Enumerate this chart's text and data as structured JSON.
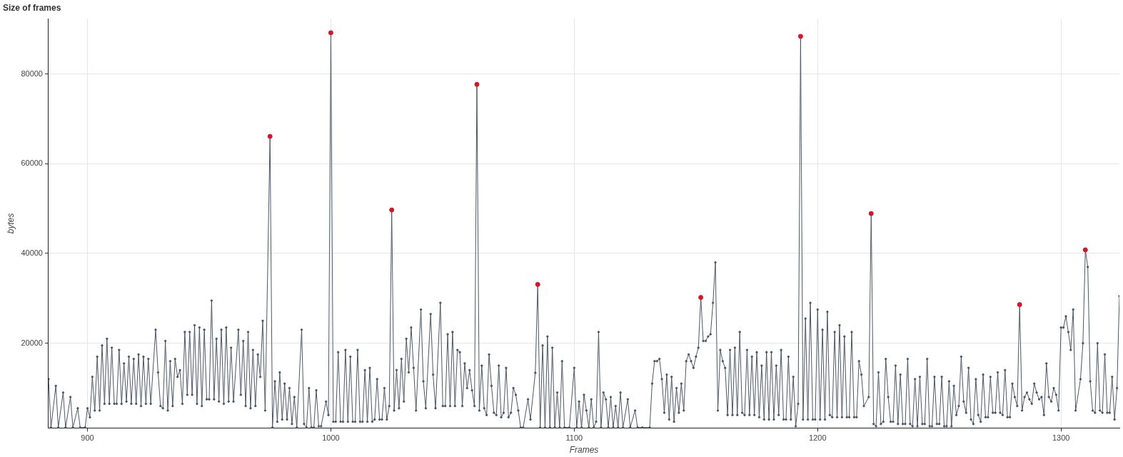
{
  "chart_data": {
    "type": "line",
    "title": "Size of frames",
    "xlabel": "Frames",
    "ylabel": "bytes",
    "grid": true,
    "xlim": [
      884,
      1324
    ],
    "ylim": [
      1100,
      92300
    ],
    "xticks": [
      900,
      1000,
      1100,
      1200,
      1300
    ],
    "yticks": [
      20000,
      40000,
      60000,
      80000
    ],
    "series": [
      {
        "color": "#4a5866",
        "marker": "circle",
        "x": [
          884,
          885,
          887,
          888,
          890,
          891,
          893,
          894,
          896,
          897,
          899,
          900,
          901,
          902,
          903,
          904,
          905,
          906,
          907,
          908,
          909,
          910,
          911,
          912,
          913,
          914,
          915,
          916,
          917,
          918,
          919,
          920,
          921,
          922,
          923,
          924,
          925,
          926,
          928,
          929,
          930,
          931,
          932,
          933,
          934,
          935,
          936,
          937,
          938,
          939,
          940,
          941,
          942,
          943,
          944,
          945,
          946,
          947,
          948,
          949,
          950,
          951,
          952,
          953,
          954,
          955,
          956,
          957,
          958,
          959,
          960,
          962,
          963,
          964,
          965,
          966,
          967,
          968,
          969,
          970,
          971,
          972,
          973,
          975,
          976,
          977,
          978,
          979,
          980,
          981,
          982,
          983,
          984,
          985,
          986,
          988,
          989,
          990,
          991,
          992,
          993,
          994,
          995,
          996,
          998,
          999,
          1000,
          1001,
          1002,
          1003,
          1004,
          1005,
          1006,
          1007,
          1008,
          1009,
          1010,
          1011,
          1012,
          1013,
          1014,
          1015,
          1016,
          1017,
          1018,
          1019,
          1020,
          1021,
          1022,
          1023,
          1024,
          1025,
          1026,
          1027,
          1028,
          1029,
          1030,
          1031,
          1032,
          1033,
          1034,
          1035,
          1037,
          1038,
          1039,
          1041,
          1042,
          1043,
          1045,
          1046,
          1047,
          1048,
          1049,
          1050,
          1051,
          1052,
          1053,
          1054,
          1055,
          1056,
          1057,
          1058,
          1059,
          1060,
          1061,
          1062,
          1063,
          1064,
          1065,
          1066,
          1067,
          1068,
          1069,
          1070,
          1071,
          1072,
          1073,
          1074,
          1075,
          1076,
          1077,
          1078,
          1079,
          1081,
          1082,
          1084,
          1085,
          1086,
          1087,
          1088,
          1089,
          1090,
          1091,
          1092,
          1093,
          1094,
          1095,
          1096,
          1098,
          1100,
          1101,
          1102,
          1103,
          1104,
          1105,
          1106,
          1107,
          1108,
          1109,
          1110,
          1111,
          1112,
          1113,
          1114,
          1115,
          1116,
          1117,
          1118,
          1119,
          1120,
          1122,
          1123,
          1125,
          1126,
          1128,
          1131,
          1132,
          1133,
          1134,
          1135,
          1136,
          1137,
          1138,
          1139,
          1140,
          1141,
          1142,
          1143,
          1144,
          1145,
          1146,
          1147,
          1148,
          1149,
          1150,
          1151,
          1152,
          1153,
          1154,
          1155,
          1156,
          1157,
          1158,
          1159,
          1160,
          1161,
          1162,
          1163,
          1164,
          1165,
          1166,
          1167,
          1168,
          1169,
          1170,
          1171,
          1172,
          1173,
          1174,
          1175,
          1176,
          1177,
          1178,
          1179,
          1180,
          1181,
          1182,
          1183,
          1184,
          1185,
          1186,
          1187,
          1188,
          1189,
          1190,
          1191,
          1192,
          1193,
          1194,
          1195,
          1196,
          1197,
          1198,
          1199,
          1200,
          1201,
          1202,
          1203,
          1204,
          1205,
          1206,
          1207,
          1208,
          1209,
          1210,
          1211,
          1212,
          1213,
          1214,
          1215,
          1216,
          1217,
          1218,
          1219,
          1221,
          1222,
          1223,
          1224,
          1225,
          1226,
          1227,
          1228,
          1229,
          1230,
          1231,
          1232,
          1233,
          1234,
          1235,
          1236,
          1237,
          1238,
          1239,
          1240,
          1241,
          1242,
          1243,
          1244,
          1245,
          1246,
          1247,
          1248,
          1249,
          1250,
          1251,
          1252,
          1253,
          1254,
          1255,
          1256,
          1257,
          1258,
          1259,
          1260,
          1261,
          1262,
          1263,
          1264,
          1265,
          1266,
          1267,
          1268,
          1269,
          1270,
          1271,
          1272,
          1273,
          1274,
          1275,
          1276,
          1277,
          1278,
          1279,
          1280,
          1281,
          1282,
          1283,
          1284,
          1285,
          1286,
          1287,
          1288,
          1289,
          1290,
          1291,
          1292,
          1293,
          1294,
          1295,
          1296,
          1297,
          1298,
          1299,
          1300,
          1301,
          1302,
          1303,
          1304,
          1305,
          1306,
          1308,
          1309,
          1310,
          1311,
          1312,
          1313,
          1314,
          1315,
          1316,
          1317,
          1318,
          1319,
          1320,
          1321,
          1322,
          1323,
          1324
        ],
        "values": [
          12000,
          1200,
          10500,
          1200,
          9000,
          1200,
          8000,
          1200,
          5500,
          1200,
          1200,
          5500,
          3500,
          12500,
          5000,
          17000,
          5000,
          19500,
          6500,
          21000,
          6500,
          19000,
          6500,
          6500,
          18500,
          6500,
          15500,
          7000,
          17000,
          6500,
          16500,
          6500,
          17500,
          6000,
          17000,
          6500,
          16500,
          6500,
          23000,
          13500,
          6000,
          5500,
          20500,
          5000,
          16000,
          6000,
          16500,
          12500,
          14000,
          6500,
          22500,
          8500,
          22500,
          8500,
          24000,
          6500,
          23500,
          6000,
          23000,
          7500,
          7500,
          29500,
          7500,
          21000,
          7000,
          23000,
          6500,
          23500,
          7000,
          19000,
          7000,
          23000,
          8500,
          20500,
          6000,
          22500,
          5500,
          18500,
          6000,
          17500,
          12500,
          25000,
          5000,
          66100,
          1200,
          11500,
          2500,
          13500,
          3000,
          11000,
          3000,
          10000,
          2000,
          8000,
          1200,
          23000,
          2000,
          1200,
          10000,
          1200,
          1200,
          9500,
          1500,
          1500,
          7000,
          4000,
          89200,
          2500,
          2500,
          18000,
          2500,
          2500,
          18500,
          2500,
          17000,
          2500,
          2500,
          18500,
          2500,
          2500,
          14000,
          2500,
          14500,
          2500,
          3000,
          12000,
          3000,
          3000,
          10000,
          3000,
          6000,
          49700,
          5000,
          14000,
          5500,
          16500,
          7000,
          21000,
          13500,
          23500,
          14500,
          5000,
          27500,
          11500,
          5500,
          26500,
          13000,
          5500,
          29000,
          6000,
          6000,
          22000,
          6000,
          22500,
          6000,
          18500,
          18000,
          6000,
          15500,
          10000,
          14000,
          9500,
          6000,
          77700,
          5000,
          15000,
          5500,
          4000,
          17500,
          10500,
          4500,
          4000,
          15000,
          3500,
          4500,
          14500,
          3500,
          4500,
          10000,
          8500,
          5000,
          1200,
          1200,
          7500,
          3000,
          13400,
          33100,
          1200,
          19500,
          1200,
          21500,
          1200,
          19000,
          1200,
          9000,
          1200,
          16000,
          1200,
          1200,
          14500,
          1200,
          7000,
          1200,
          8500,
          5000,
          1200,
          7500,
          1200,
          2500,
          22500,
          1200,
          9000,
          7500,
          1200,
          8000,
          1200,
          6000,
          1200,
          9000,
          1200,
          7500,
          1200,
          5000,
          1200,
          1200,
          1200,
          11000,
          16000,
          16000,
          16500,
          12000,
          4500,
          13000,
          3000,
          12500,
          2500,
          10000,
          4500,
          11000,
          5000,
          16000,
          17500,
          16000,
          14500,
          17000,
          19000,
          30200,
          20500,
          20500,
          21500,
          22000,
          29000,
          38000,
          5000,
          18500,
          16000,
          14500,
          4000,
          18500,
          4000,
          19000,
          4000,
          22500,
          4500,
          4000,
          18500,
          4000,
          17000,
          4000,
          18000,
          3500,
          15000,
          3000,
          18000,
          3000,
          18000,
          3000,
          15000,
          4000,
          18500,
          3000,
          3000,
          17000,
          3000,
          12500,
          1500,
          6500,
          88400,
          3000,
          25500,
          3000,
          29000,
          3000,
          3000,
          27500,
          3000,
          23000,
          3000,
          27000,
          4000,
          3500,
          22500,
          3500,
          24000,
          3500,
          21500,
          3500,
          3500,
          22500,
          3500,
          3500,
          16000,
          13000,
          6000,
          8000,
          48900,
          2000,
          1500,
          13500,
          2000,
          2500,
          16500,
          8000,
          2500,
          2500,
          15000,
          2000,
          13000,
          2000,
          2000,
          16500,
          2000,
          1500,
          12000,
          1500,
          12500,
          2000,
          2000,
          16500,
          1500,
          1500,
          12500,
          2000,
          2000,
          12500,
          1500,
          1500,
          11500,
          1500,
          10500,
          4000,
          6000,
          17000,
          7000,
          4500,
          14500,
          3000,
          2000,
          12000,
          4000,
          2500,
          13000,
          3500,
          3500,
          12500,
          4500,
          4500,
          13500,
          4500,
          4000,
          14000,
          3500,
          3500,
          11000,
          8000,
          6000,
          28600,
          5000,
          8000,
          9000,
          7500,
          6500,
          11000,
          9000,
          7500,
          8000,
          4000,
          15500,
          8000,
          7000,
          10000,
          8500,
          5000,
          23500,
          23500,
          26000,
          22500,
          18500,
          27500,
          5000,
          12000,
          20000,
          40800,
          37000,
          11500,
          5000,
          4500,
          20000,
          5000,
          4500,
          17500,
          4500,
          4500,
          12500,
          3000,
          10000,
          30500
        ]
      },
      {
        "type": "scatter",
        "color": "#d7152a",
        "marker": "circle",
        "x": [
          975,
          1000,
          1025,
          1060,
          1085,
          1152,
          1193,
          1222,
          1283,
          1310
        ],
        "values": [
          66100,
          89200,
          49700,
          77700,
          33100,
          30200,
          88400,
          48900,
          28600,
          40800
        ]
      }
    ]
  }
}
